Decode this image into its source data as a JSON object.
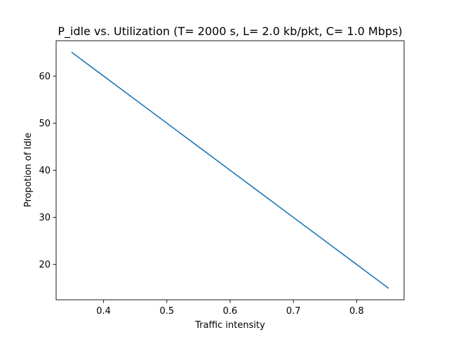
{
  "chart_data": {
    "type": "line",
    "title": "P_idle vs. Utilization (T= 2000 s, L= 2.0 kb/pkt, C= 1.0 Mbps)",
    "xlabel": "Traffic intensity",
    "ylabel": "Propotion of Idle",
    "xlim": [
      0.325,
      0.875
    ],
    "ylim": [
      12.5,
      67.5
    ],
    "xticks": [
      0.4,
      0.5,
      0.6,
      0.7,
      0.8
    ],
    "yticks": [
      20,
      30,
      40,
      50,
      60
    ],
    "grid": false,
    "series": [
      {
        "color": "#1f77b4",
        "x": [
          0.35,
          0.4,
          0.45,
          0.5,
          0.55,
          0.6,
          0.65,
          0.7,
          0.75,
          0.8,
          0.85
        ],
        "y": [
          65,
          60,
          55,
          50,
          45,
          40,
          35,
          30,
          25,
          20,
          15
        ]
      }
    ]
  }
}
